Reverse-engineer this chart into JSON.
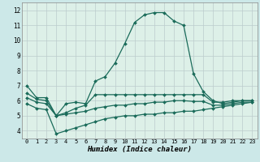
{
  "xlabel": "Humidex (Indice chaleur)",
  "ylabel": "",
  "bg_color": "#cce8e8",
  "plot_bg_color": "#ddeedd",
  "grid_color_major": "#bbcccc",
  "grid_color_minor": "#ccdddd",
  "line_color": "#1a6b5a",
  "x_min": -0.5,
  "x_max": 23.5,
  "y_min": 3.5,
  "y_max": 12.5,
  "yticks": [
    4,
    5,
    6,
    7,
    8,
    9,
    10,
    11,
    12
  ],
  "xticks": [
    0,
    1,
    2,
    3,
    4,
    5,
    6,
    7,
    8,
    9,
    10,
    11,
    12,
    13,
    14,
    15,
    16,
    17,
    18,
    19,
    20,
    21,
    22,
    23
  ],
  "line1_x": [
    0,
    1,
    2,
    3,
    4,
    5,
    6,
    7,
    8,
    9,
    10,
    11,
    12,
    13,
    14,
    15,
    16,
    17,
    18,
    19,
    20,
    21,
    22,
    23
  ],
  "line1_y": [
    7.0,
    6.2,
    6.2,
    5.0,
    5.8,
    5.9,
    5.8,
    7.3,
    7.6,
    8.5,
    9.8,
    11.2,
    11.7,
    11.85,
    11.85,
    11.3,
    11.0,
    7.8,
    6.6,
    6.0,
    5.8,
    5.9,
    6.0,
    6.0
  ],
  "line2_x": [
    0,
    1,
    2,
    3,
    4,
    5,
    6,
    7,
    8,
    9,
    10,
    11,
    12,
    13,
    14,
    15,
    16,
    17,
    18,
    19,
    20,
    21,
    22,
    23
  ],
  "line2_y": [
    6.5,
    6.1,
    6.0,
    5.0,
    5.2,
    5.5,
    5.7,
    6.4,
    6.4,
    6.4,
    6.4,
    6.4,
    6.4,
    6.4,
    6.4,
    6.4,
    6.4,
    6.4,
    6.4,
    5.9,
    5.9,
    6.0,
    6.0,
    6.0
  ],
  "line3_x": [
    0,
    1,
    2,
    3,
    4,
    5,
    6,
    7,
    8,
    9,
    10,
    11,
    12,
    13,
    14,
    15,
    16,
    17,
    18,
    19,
    20,
    21,
    22,
    23
  ],
  "line3_y": [
    6.2,
    5.9,
    5.8,
    5.0,
    5.1,
    5.2,
    5.3,
    5.5,
    5.6,
    5.7,
    5.7,
    5.8,
    5.8,
    5.9,
    5.9,
    6.0,
    6.0,
    5.95,
    5.95,
    5.7,
    5.7,
    5.8,
    5.9,
    5.9
  ],
  "line4_x": [
    0,
    1,
    2,
    3,
    4,
    5,
    6,
    7,
    8,
    9,
    10,
    11,
    12,
    13,
    14,
    15,
    16,
    17,
    18,
    19,
    20,
    21,
    22,
    23
  ],
  "line4_y": [
    5.8,
    5.5,
    5.4,
    3.8,
    4.0,
    4.2,
    4.4,
    4.6,
    4.8,
    4.9,
    5.0,
    5.0,
    5.1,
    5.1,
    5.2,
    5.2,
    5.3,
    5.3,
    5.4,
    5.5,
    5.6,
    5.7,
    5.8,
    5.9
  ]
}
